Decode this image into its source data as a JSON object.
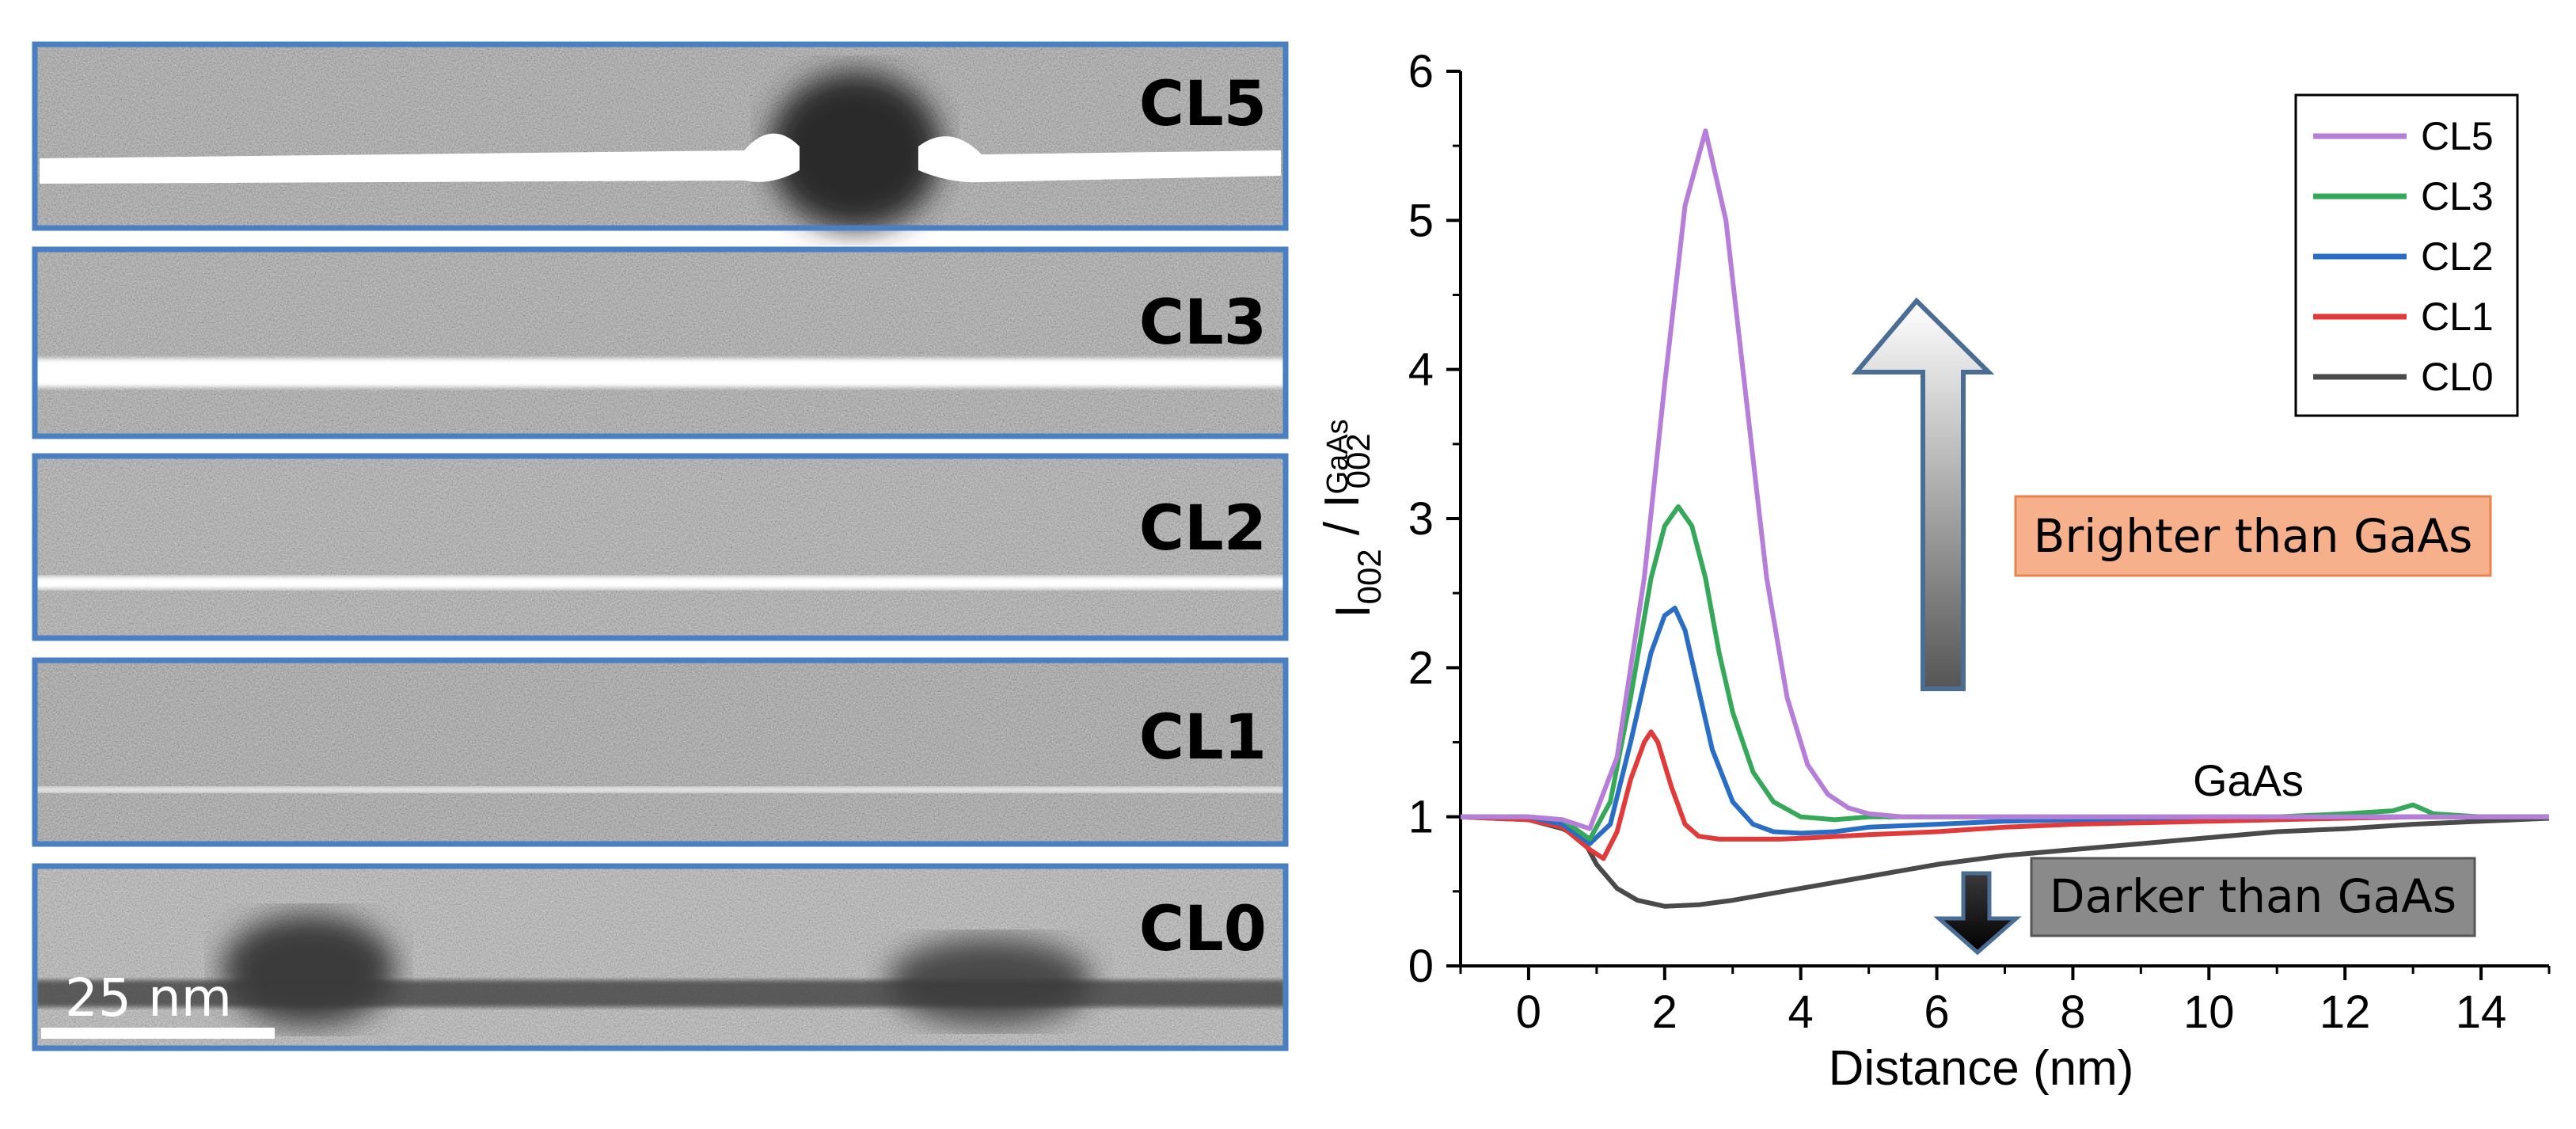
{
  "micrographs": {
    "panels": [
      {
        "label": "CL5",
        "line_color": "#ffffff"
      },
      {
        "label": "CL3",
        "line_color": "#ffffff"
      },
      {
        "label": "CL2",
        "line_color": "#ffffff"
      },
      {
        "label": "CL1",
        "line_color": "#ffffff"
      },
      {
        "label": "CL0",
        "line_color": "#2a2a2a"
      }
    ],
    "scale_bar_label": "25 nm",
    "frame_color": "#4a7fc1"
  },
  "chart_data": {
    "type": "line",
    "title": "",
    "xlabel": "Distance (nm)",
    "ylabel": "I002 / I002 GaAs",
    "ylabel_main": "I",
    "ylabel_sub1": "002",
    "ylabel_sep": " / I",
    "ylabel_sup": "GaAs",
    "ylabel_sub2": "002",
    "xlim": [
      -1,
      15
    ],
    "ylim": [
      0,
      6
    ],
    "xticks": [
      0,
      2,
      4,
      6,
      8,
      10,
      12,
      14
    ],
    "yticks": [
      0,
      1,
      2,
      3,
      4,
      5,
      6
    ],
    "legend_position": "top-right",
    "series": [
      {
        "name": "CL5",
        "color": "#b67ed8",
        "x": [
          -1,
          0,
          0.5,
          0.9,
          1.3,
          1.7,
          2.0,
          2.3,
          2.6,
          2.9,
          3.2,
          3.5,
          3.8,
          4.1,
          4.4,
          4.7,
          5.0,
          5.5,
          6,
          7,
          8,
          9,
          10,
          11,
          12,
          13,
          14,
          15
        ],
        "y": [
          1.0,
          1.0,
          0.98,
          0.92,
          1.4,
          2.6,
          3.9,
          5.1,
          5.6,
          5.0,
          3.8,
          2.6,
          1.8,
          1.35,
          1.15,
          1.06,
          1.02,
          1.0,
          1.0,
          1.0,
          1.0,
          1.0,
          1.0,
          1.0,
          1.0,
          1.0,
          1.0,
          1.0
        ]
      },
      {
        "name": "CL3",
        "color": "#35a85a",
        "x": [
          -1,
          0,
          0.5,
          0.9,
          1.2,
          1.5,
          1.8,
          2.0,
          2.2,
          2.4,
          2.6,
          2.8,
          3.0,
          3.3,
          3.6,
          4.0,
          4.5,
          5.0,
          6,
          7,
          8,
          9,
          10,
          11,
          12,
          12.7,
          13,
          13.3,
          14,
          15
        ],
        "y": [
          1.0,
          1.0,
          0.98,
          0.85,
          1.1,
          1.8,
          2.6,
          2.95,
          3.08,
          2.95,
          2.6,
          2.1,
          1.7,
          1.3,
          1.1,
          1.0,
          0.98,
          1.0,
          1.0,
          1.0,
          1.0,
          1.0,
          1.0,
          1.0,
          1.02,
          1.04,
          1.08,
          1.02,
          1.0,
          1.0
        ]
      },
      {
        "name": "CL2",
        "color": "#2a6dc5",
        "x": [
          -1,
          0,
          0.5,
          0.9,
          1.2,
          1.5,
          1.8,
          2.0,
          2.15,
          2.3,
          2.5,
          2.7,
          3.0,
          3.3,
          3.6,
          4.0,
          4.5,
          5.0,
          6,
          7,
          8,
          9,
          10,
          11,
          12,
          13,
          14,
          15
        ],
        "y": [
          1.0,
          1.0,
          0.95,
          0.82,
          0.95,
          1.5,
          2.1,
          2.35,
          2.4,
          2.25,
          1.85,
          1.45,
          1.1,
          0.95,
          0.9,
          0.89,
          0.9,
          0.93,
          0.95,
          0.97,
          0.98,
          0.99,
          1.0,
          1.0,
          1.0,
          1.0,
          1.0,
          1.0
        ]
      },
      {
        "name": "CL1",
        "color": "#e03a3a",
        "x": [
          -1,
          0,
          0.5,
          0.9,
          1.1,
          1.3,
          1.5,
          1.7,
          1.8,
          1.9,
          2.1,
          2.3,
          2.5,
          2.8,
          3.2,
          3.7,
          4.2,
          5,
          6,
          7,
          8,
          9,
          10,
          11,
          12,
          13,
          14,
          15
        ],
        "y": [
          1.0,
          0.98,
          0.93,
          0.78,
          0.72,
          0.9,
          1.25,
          1.5,
          1.57,
          1.5,
          1.2,
          0.95,
          0.87,
          0.85,
          0.85,
          0.85,
          0.86,
          0.88,
          0.9,
          0.93,
          0.95,
          0.96,
          0.97,
          0.98,
          0.99,
          1.0,
          1.0,
          1.0
        ]
      },
      {
        "name": "CL0",
        "color": "#4a4a4a",
        "x": [
          -1,
          0,
          0.5,
          0.8,
          1.0,
          1.3,
          1.6,
          2.0,
          2.5,
          3.0,
          3.5,
          4.0,
          5.0,
          6.0,
          7.0,
          8.0,
          9.0,
          10.0,
          11.0,
          12.0,
          13.0,
          14.0,
          15.0
        ],
        "y": [
          1.0,
          0.98,
          0.92,
          0.85,
          0.68,
          0.52,
          0.44,
          0.4,
          0.41,
          0.44,
          0.48,
          0.52,
          0.6,
          0.68,
          0.74,
          0.78,
          0.82,
          0.86,
          0.9,
          0.92,
          0.95,
          0.97,
          0.99
        ]
      }
    ],
    "annotations": {
      "brighter": "Brighter than GaAs",
      "darker": "Darker than GaAs",
      "gaas": "GaAs"
    }
  }
}
